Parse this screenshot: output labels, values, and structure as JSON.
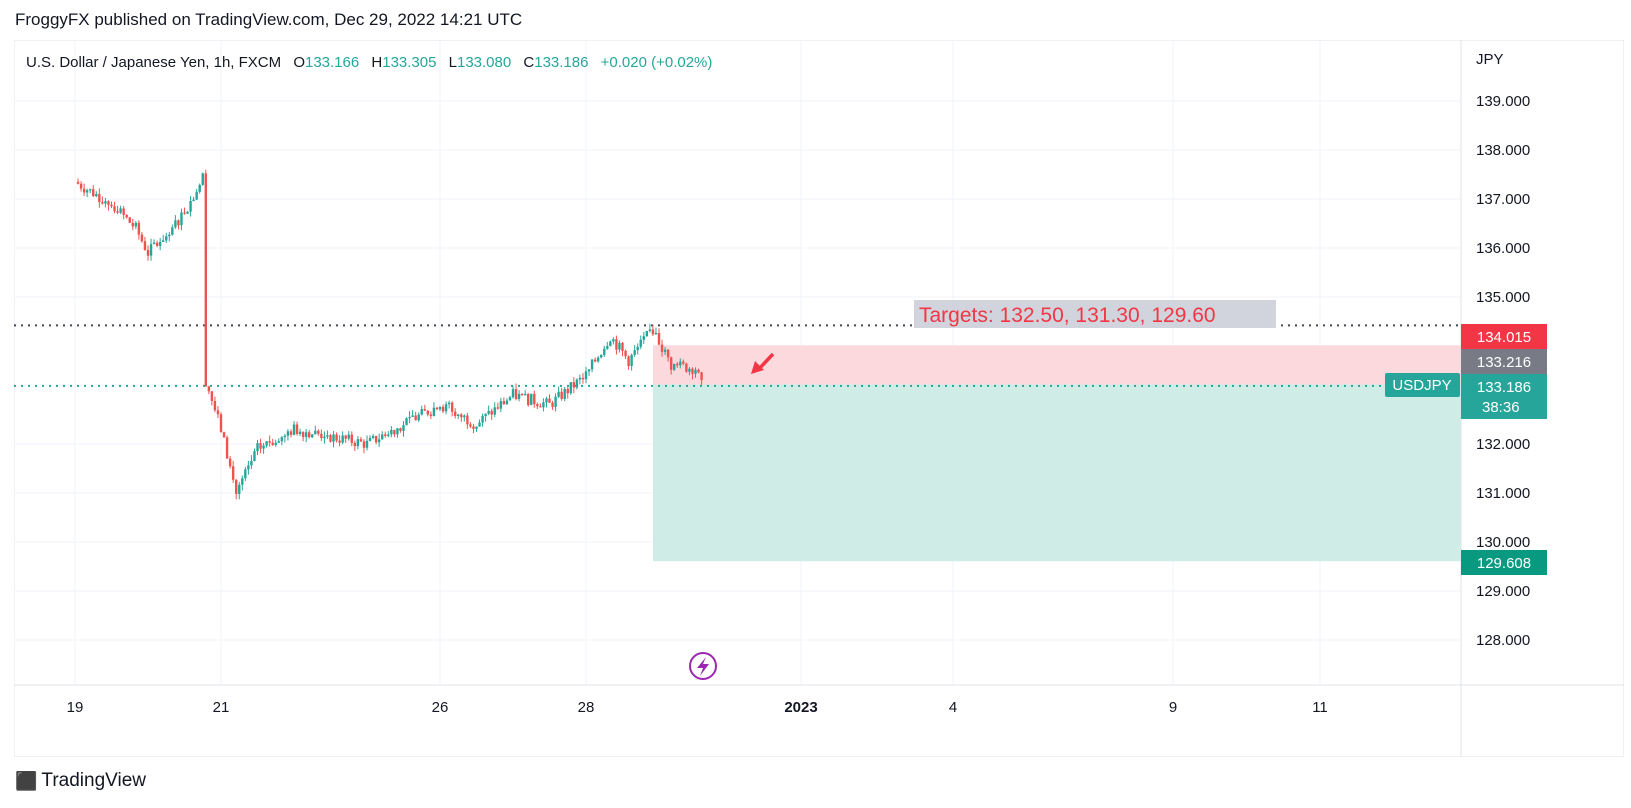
{
  "header": {
    "publisher": "FroggyFX published on TradingView.com, Dec 29, 2022 14:21 UTC"
  },
  "legend": {
    "symbol": "U.S. Dollar / Japanese Yen, 1h, FXCM",
    "o_label": "O",
    "o_value": "133.166",
    "h_label": "H",
    "h_value": "133.305",
    "l_label": "L",
    "l_value": "133.080",
    "c_label": "C",
    "c_value": "133.186",
    "change": "+0.020 (+0.02%)"
  },
  "annotation": {
    "targets": "Targets: 132.50, 131.30, 129.60"
  },
  "price_tags": {
    "stop": "134.015",
    "entry": "133.216",
    "last": "133.186",
    "countdown": "38:36",
    "target": "129.608",
    "symbol_tag": "USDJPY"
  },
  "footer": {
    "brand": "TradingView"
  },
  "colors": {
    "up": "#26a69a",
    "down": "#ef5350",
    "stop_tag": "#f23645",
    "entry_tag": "#787b86",
    "profit_zone": "#cfece7",
    "loss_zone": "#fcd9dc",
    "target_text": "#f23645",
    "target_bg": "#d1d4dc"
  },
  "chart_data": {
    "type": "candlestick",
    "symbol": "USDJPY",
    "timeframe": "1h",
    "currency": "JPY",
    "y_axis": {
      "ticks": [
        "139.000",
        "138.000",
        "137.000",
        "136.000",
        "135.000",
        "132.000",
        "131.000",
        "130.000",
        "129.000",
        "128.000"
      ],
      "range": [
        127.1,
        140.3
      ]
    },
    "x_axis": {
      "ticks": [
        "19",
        "21",
        "26",
        "28",
        "2023",
        "4",
        "9",
        "11"
      ]
    },
    "price_path": [
      [
        "Dec 19 00:00",
        137.35
      ],
      [
        "Dec 19 12:00",
        136.9
      ],
      [
        "Dec 19 20:00",
        136.4
      ],
      [
        "Dec 20 00:00",
        135.9
      ],
      [
        "Dec 20 08:00",
        136.4
      ],
      [
        "Dec 20 14:00",
        136.95
      ],
      [
        "Dec 20 18:00",
        137.45
      ],
      [
        "Dec 20 19:00",
        133.3
      ],
      [
        "Dec 21 00:00",
        132.3
      ],
      [
        "Dec 21 05:00",
        131.0
      ],
      [
        "Dec 21 12:00",
        131.9
      ],
      [
        "Dec 22 00:00",
        132.3
      ],
      [
        "Dec 23 00:00",
        132.0
      ],
      [
        "Dec 23 12:00",
        132.4
      ],
      [
        "Dec 26 00:00",
        132.8
      ],
      [
        "Dec 26 12:00",
        132.4
      ],
      [
        "Dec 27 00:00",
        133.0
      ],
      [
        "Dec 27 12:00",
        132.8
      ],
      [
        "Dec 28 00:00",
        133.4
      ],
      [
        "Dec 28 08:00",
        134.2
      ],
      [
        "Dec 28 14:00",
        133.7
      ],
      [
        "Dec 28 22:00",
        134.35
      ],
      [
        "Dec 29 04:00",
        133.6
      ],
      [
        "Dec 29 12:00",
        133.55
      ],
      [
        "Dec 29 14:00",
        133.186
      ]
    ],
    "levels": [
      {
        "name": "resistance",
        "value": 134.42,
        "style": "dotted"
      },
      {
        "name": "current",
        "value": 133.186,
        "style": "dotted"
      }
    ],
    "short_position": {
      "entry": 133.216,
      "stop": 134.015,
      "target": 129.608,
      "start": "Dec 29 00:00",
      "end": "right edge"
    }
  }
}
